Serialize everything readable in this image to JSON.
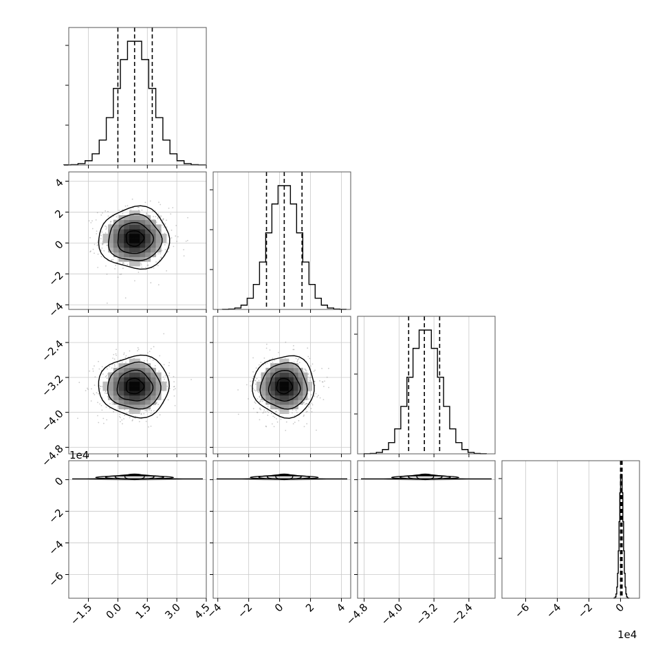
{
  "chart_data": {
    "type": "corner",
    "title": "",
    "grid": true,
    "dim_labels": [
      "",
      "",
      "",
      ""
    ],
    "scale_labels": {
      "y_row4": "1e4",
      "x_col4": "1e4"
    },
    "dims": [
      {
        "range": [
          -2.5,
          4.5
        ],
        "ticks": [
          -1.5,
          0.0,
          1.5,
          3.0,
          4.5
        ],
        "tick_labels": [
          "−1.5",
          "0.0",
          "1.5",
          "3.0",
          "4.5"
        ],
        "mean": 0.85,
        "sd": 0.9,
        "quantiles": [
          0.0,
          0.85,
          1.75
        ]
      },
      {
        "range": [
          -4.3,
          4.6
        ],
        "ticks": [
          -4,
          -2,
          0,
          2,
          4
        ],
        "tick_labels": [
          "−4",
          "−2",
          "0",
          "2",
          "4"
        ],
        "mean": 0.3,
        "sd": 1.0,
        "quantiles": [
          -0.85,
          0.3,
          1.45
        ]
      },
      {
        "range": [
          -4.95,
          -1.8
        ],
        "ticks": [
          -4.8,
          -4.0,
          -3.2,
          -2.4
        ],
        "tick_labels": [
          "−4.8",
          "−4.0",
          "−3.2",
          "−2.4"
        ],
        "mean": -3.4,
        "sd": 0.35,
        "quantiles": [
          -3.78,
          -3.42,
          -3.07
        ]
      },
      {
        "range": [
          -7.5,
          1.2
        ],
        "ticks": [
          -6,
          -4,
          -2,
          0
        ],
        "tick_labels": [
          "−6",
          "−4",
          "−2",
          "0"
        ],
        "mean": 0.05,
        "sd": 0.12,
        "quantiles": [
          0.0,
          0.05,
          0.1
        ]
      }
    ],
    "hist_bins": 20,
    "contour_levels": [
      0.5,
      1.0,
      1.5,
      2.0
    ]
  }
}
